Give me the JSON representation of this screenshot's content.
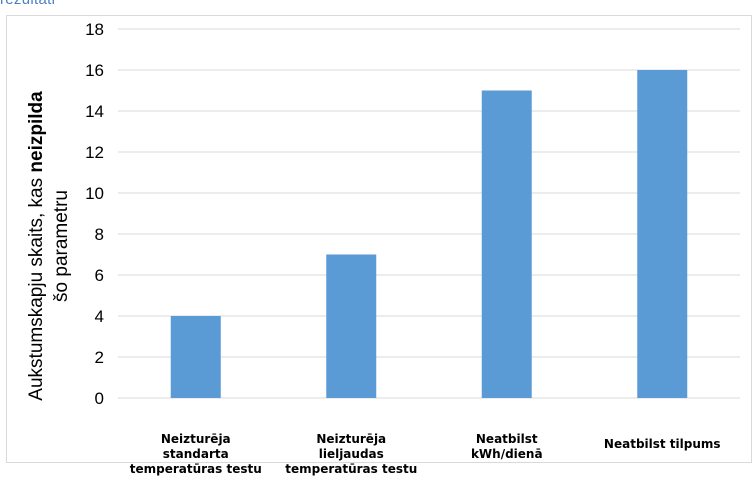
{
  "header_text": "rezultāti",
  "chart_data": {
    "type": "bar",
    "categories": [
      [
        "Neizturēja",
        "standarta",
        "temperatūras testu"
      ],
      [
        "Neizturēja",
        "lieljaudas",
        "temperatūras testu"
      ],
      [
        "Neatbilst",
        "kWh/dienā"
      ],
      [
        "Neatbilst tilpums"
      ]
    ],
    "values": [
      4,
      7,
      15,
      16
    ],
    "ylabel_line1_prefix": "Aukstumskapju skaits, kas ",
    "ylabel_line1_bold": "neizpilda",
    "ylabel_line2": "šo parametru",
    "ylim": [
      0,
      18
    ],
    "yticks": [
      0,
      2,
      4,
      6,
      8,
      10,
      12,
      14,
      16,
      18
    ],
    "grid": true,
    "bar_color": "#5b9bd5",
    "grid_color": "#d9d9d9"
  }
}
